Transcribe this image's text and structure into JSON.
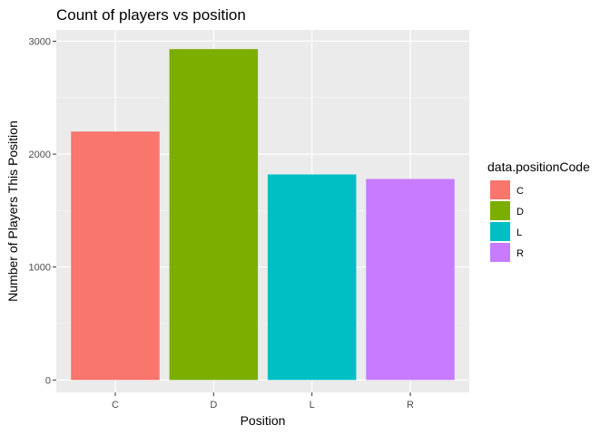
{
  "chart_data": {
    "type": "bar",
    "title": "Count of players vs position",
    "xlabel": "Position",
    "ylabel": "Number of Players This Position",
    "categories": [
      "C",
      "D",
      "L",
      "R"
    ],
    "values": [
      2200,
      2930,
      1820,
      1780
    ],
    "colors": [
      "#F8766D",
      "#7CAE00",
      "#00BFC4",
      "#C77CFF"
    ],
    "ylim": [
      -110,
      3100
    ],
    "yticks": [
      0,
      1000,
      2000,
      3000
    ],
    "grid": true,
    "legend": {
      "title": "data.positionCode",
      "placement": "right",
      "entries": [
        "C",
        "D",
        "L",
        "R"
      ]
    }
  }
}
